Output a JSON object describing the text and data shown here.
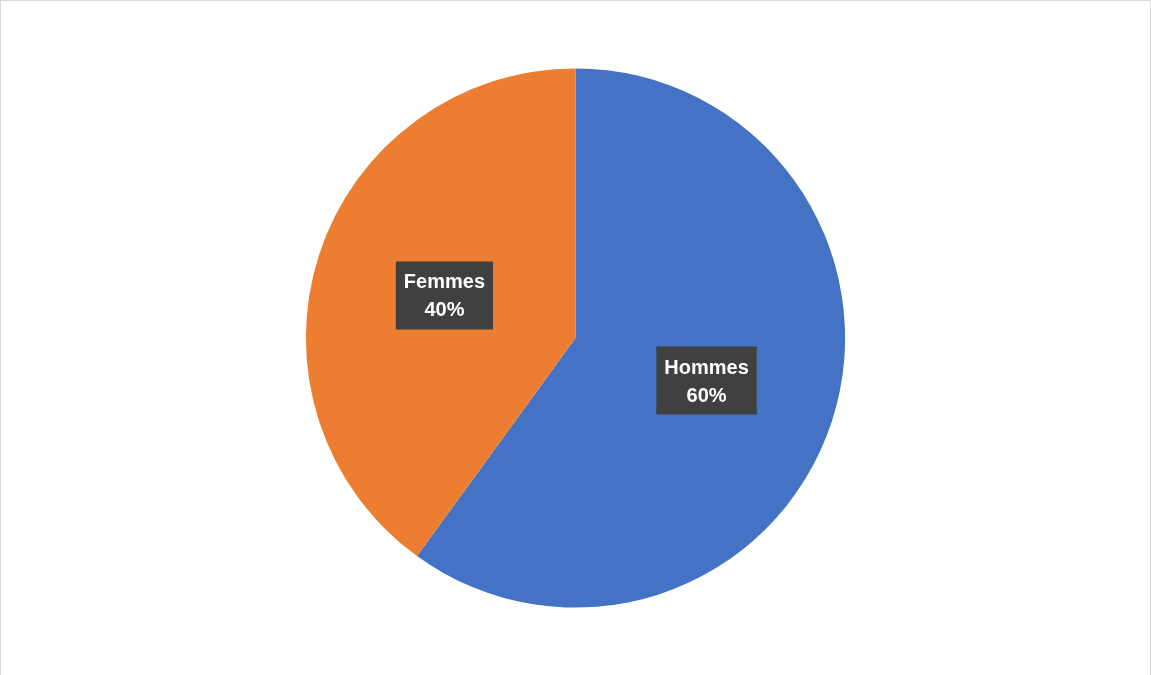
{
  "chart_data": {
    "type": "pie",
    "categories": [
      "Hommes",
      "Femmes"
    ],
    "values": [
      60,
      40
    ],
    "value_labels": [
      "60%",
      "40%"
    ],
    "colors": [
      "#4472c4",
      "#ed7d31"
    ],
    "legend": false
  }
}
